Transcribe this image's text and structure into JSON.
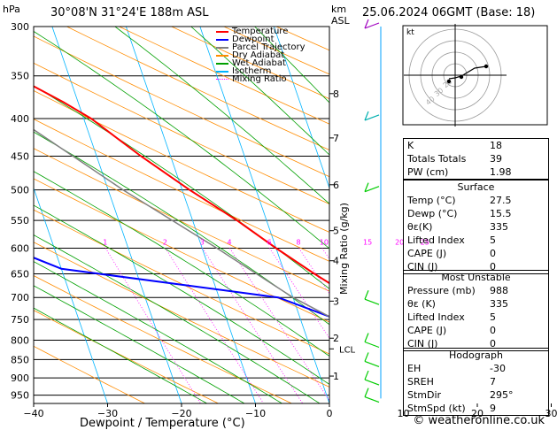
{
  "header": {
    "pressure_unit": "hPa",
    "location": "30°08'N  31°24'E  188m  ASL",
    "height_unit_km": "km",
    "height_unit_asl": "ASL",
    "datetime": "25.06.2024  06GMT  (Base: 18)"
  },
  "chart_data": {
    "type": "line",
    "subtype": "skew-T log-p diagram",
    "xlabel": "Dewpoint / Temperature (°C)",
    "ylabel": "hPa",
    "right_axis_label": "Mixing Ratio (g/kg)",
    "xlim": [
      -40,
      40
    ],
    "ylim": [
      300,
      1000
    ],
    "x_ticks": [
      -40,
      -30,
      -20,
      -10,
      0,
      10,
      20,
      30
    ],
    "pressure_levels": [
      300,
      350,
      400,
      450,
      500,
      550,
      600,
      650,
      700,
      750,
      800,
      850,
      900,
      950
    ],
    "height_km_ticks": [
      {
        "label": "8",
        "p": 370
      },
      {
        "label": "7",
        "p": 425
      },
      {
        "label": "6",
        "p": 492
      },
      {
        "label": "5",
        "p": 568
      },
      {
        "label": "4",
        "p": 624
      },
      {
        "label": "3",
        "p": 708
      },
      {
        "label": "2",
        "p": 795
      },
      {
        "label": "1",
        "p": 895
      }
    ],
    "lcl": {
      "label": "LCL",
      "p": 822
    },
    "mixing_ratio_labels": [
      "1",
      "2",
      "3",
      "4",
      "6",
      "8",
      "10",
      "15",
      "20",
      "25"
    ],
    "legend": [
      "Temperature",
      "Dewpoint",
      "Parcel Trajectory",
      "Dry Adiabat",
      "Wet Adiabat",
      "Isotherm",
      "Mixing Ratio"
    ],
    "colors": {
      "temperature": "#ff0000",
      "dewpoint": "#0000ff",
      "parcel": "#808080",
      "dry_adiabat": "#ff8c00",
      "wet_adiabat": "#00a000",
      "isotherm": "#00b4ff",
      "mixing_ratio": "#ff00ff",
      "wind": "#00cc00"
    },
    "series": [
      {
        "name": "Temperature",
        "points": [
          {
            "p": 355,
            "t": -26.5
          },
          {
            "p": 380,
            "t": -22
          },
          {
            "p": 400,
            "t": -19
          },
          {
            "p": 450,
            "t": -14
          },
          {
            "p": 500,
            "t": -9
          },
          {
            "p": 550,
            "t": -4
          },
          {
            "p": 600,
            "t": 0
          },
          {
            "p": 650,
            "t": 4
          },
          {
            "p": 700,
            "t": 8
          },
          {
            "p": 750,
            "t": 12
          },
          {
            "p": 800,
            "t": 17
          },
          {
            "p": 850,
            "t": 21
          },
          {
            "p": 900,
            "t": 25.5
          },
          {
            "p": 930,
            "t": 29
          },
          {
            "p": 950,
            "t": 28
          },
          {
            "p": 970,
            "t": 27.5
          }
        ]
      },
      {
        "name": "Dewpoint",
        "points": [
          {
            "p": 300,
            "t": -52
          },
          {
            "p": 350,
            "t": -60
          },
          {
            "p": 400,
            "t": -73
          },
          {
            "p": 450,
            "t": -62
          },
          {
            "p": 500,
            "t": -53
          },
          {
            "p": 550,
            "t": -43
          },
          {
            "p": 600,
            "t": -36
          },
          {
            "p": 640,
            "t": -30
          },
          {
            "p": 700,
            "t": -2
          },
          {
            "p": 750,
            "t": 5
          },
          {
            "p": 800,
            "t": 6
          },
          {
            "p": 850,
            "t": 10
          },
          {
            "p": 900,
            "t": 11
          },
          {
            "p": 920,
            "t": 9
          },
          {
            "p": 950,
            "t": 12
          },
          {
            "p": 970,
            "t": 15.5
          }
        ]
      },
      {
        "name": "Parcel Trajectory",
        "points": [
          {
            "p": 300,
            "t": -40
          },
          {
            "p": 400,
            "t": -29
          },
          {
            "p": 500,
            "t": -18
          },
          {
            "p": 600,
            "t": -8
          },
          {
            "p": 700,
            "t": 0
          },
          {
            "p": 800,
            "t": 9
          },
          {
            "p": 822,
            "t": 11
          }
        ]
      }
    ],
    "wind_barb_levels": [
      300,
      400,
      500,
      700,
      800,
      850,
      900,
      950
    ]
  },
  "hodograph": {
    "label": "kt",
    "ring_labels": [
      "40",
      "30",
      "20"
    ]
  },
  "indices": [
    {
      "label": "K",
      "value": "18"
    },
    {
      "label": "Totals Totals",
      "value": "39"
    },
    {
      "label": "PW (cm)",
      "value": "1.98"
    }
  ],
  "surface": {
    "title": "Surface",
    "rows": [
      {
        "label": "Temp (°C)",
        "value": "27.5"
      },
      {
        "label": "Dewp (°C)",
        "value": "15.5"
      },
      {
        "label": "θε(K)",
        "value": "335"
      },
      {
        "label": "Lifted Index",
        "value": "5"
      },
      {
        "label": "CAPE (J)",
        "value": "0"
      },
      {
        "label": "CIN (J)",
        "value": "0"
      }
    ]
  },
  "most_unstable": {
    "title": "Most Unstable",
    "rows": [
      {
        "label": "Pressure (mb)",
        "value": "988"
      },
      {
        "label": "θε (K)",
        "value": "335"
      },
      {
        "label": "Lifted Index",
        "value": "5"
      },
      {
        "label": "CAPE (J)",
        "value": "0"
      },
      {
        "label": "CIN (J)",
        "value": "0"
      }
    ]
  },
  "hodograph_table": {
    "title": "Hodograph",
    "rows": [
      {
        "label": "EH",
        "value": "-30"
      },
      {
        "label": "SREH",
        "value": "7"
      },
      {
        "label": "StmDir",
        "value": "295°"
      },
      {
        "label": "StmSpd (kt)",
        "value": "9"
      }
    ]
  },
  "footer": "© weatheronline.co.uk"
}
